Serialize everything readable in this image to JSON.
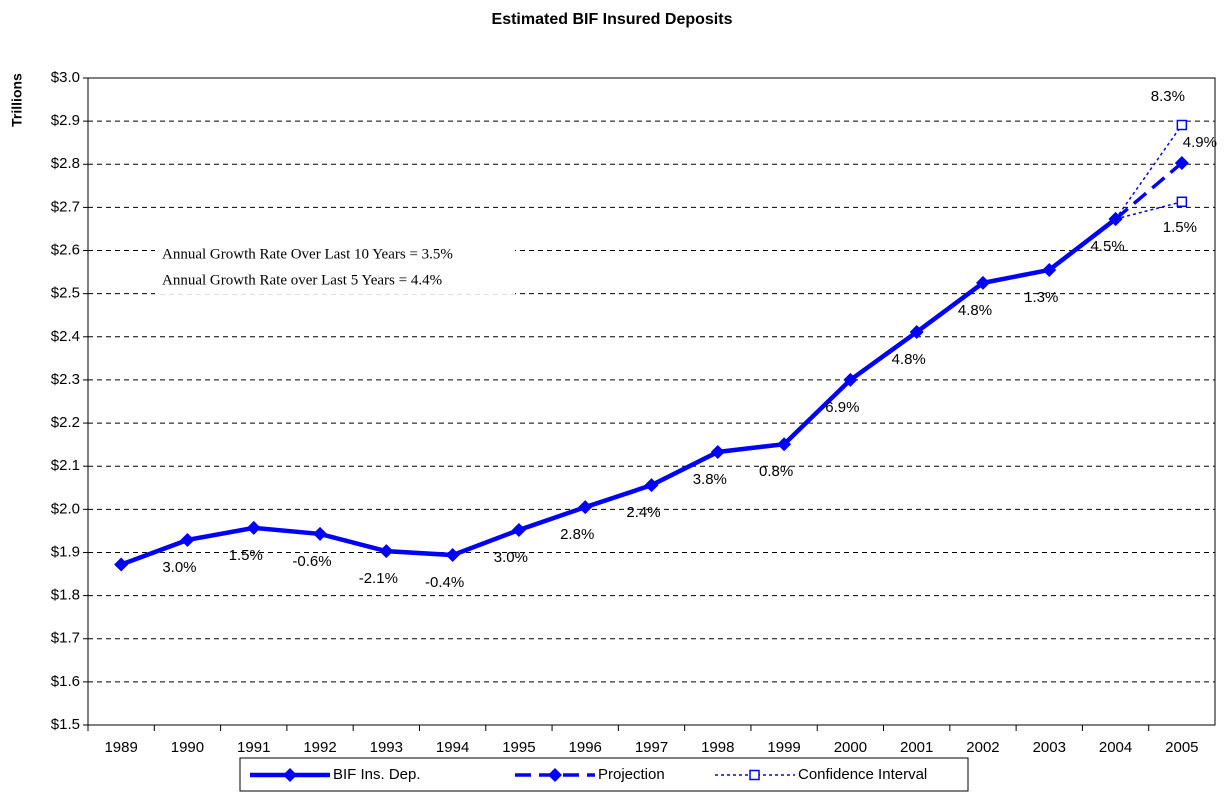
{
  "chart_data": {
    "type": "line",
    "title": "Estimated BIF Insured Deposits",
    "y_label": "Trillions",
    "categories": [
      "1989",
      "1990",
      "1991",
      "1992",
      "1993",
      "1994",
      "1995",
      "1996",
      "1997",
      "1998",
      "1999",
      "2000",
      "2001",
      "2002",
      "2003",
      "2004",
      "2005"
    ],
    "ylim": [
      1.5,
      3.0
    ],
    "yticks": [
      {
        "value": 1.5,
        "label": "$1.5"
      },
      {
        "value": 1.6,
        "label": "$1.6"
      },
      {
        "value": 1.7,
        "label": "$1.7"
      },
      {
        "value": 1.8,
        "label": "$1.8"
      },
      {
        "value": 1.9,
        "label": "$1.9"
      },
      {
        "value": 2.0,
        "label": "$2.0"
      },
      {
        "value": 2.1,
        "label": "$2.1"
      },
      {
        "value": 2.2,
        "label": "$2.2"
      },
      {
        "value": 2.3,
        "label": "$2.3"
      },
      {
        "value": 2.4,
        "label": "$2.4"
      },
      {
        "value": 2.5,
        "label": "$2.5"
      },
      {
        "value": 2.6,
        "label": "$2.6"
      },
      {
        "value": 2.7,
        "label": "$2.7"
      },
      {
        "value": 2.8,
        "label": "$2.8"
      },
      {
        "value": 2.9,
        "label": "$2.9"
      },
      {
        "value": 3.0,
        "label": "$3.0"
      }
    ],
    "grid": true,
    "series": [
      {
        "name": "BIF Ins. Dep.",
        "color": "#0000ff",
        "style": "solid",
        "values": [
          1.872,
          1.929,
          1.957,
          1.943,
          1.903,
          1.894,
          1.952,
          2.005,
          2.056,
          2.133,
          2.151,
          2.3,
          2.411,
          2.525,
          2.555,
          2.673,
          null
        ],
        "growth_labels": [
          null,
          "3.0%",
          "1.5%",
          "-0.6%",
          "-2.1%",
          "-0.4%",
          "3.0%",
          "2.8%",
          "2.4%",
          "3.8%",
          "0.8%",
          "6.9%",
          "4.8%",
          "4.8%",
          "1.3%",
          "4.5%",
          null
        ]
      },
      {
        "name": "Projection",
        "color": "#0000ff",
        "style": "dashed",
        "values": [
          null,
          null,
          null,
          null,
          null,
          null,
          null,
          null,
          null,
          null,
          null,
          null,
          null,
          null,
          null,
          2.673,
          2.803
        ],
        "growth_labels": [
          null,
          null,
          null,
          null,
          null,
          null,
          null,
          null,
          null,
          null,
          null,
          null,
          null,
          null,
          null,
          null,
          "4.9%"
        ]
      },
      {
        "name": "Confidence Interval",
        "color": "#0000ff",
        "style": "dotted",
        "values": [
          null,
          null,
          null,
          null,
          null,
          null,
          null,
          null,
          null,
          null,
          null,
          null,
          null,
          null,
          null,
          2.673,
          2.891
        ],
        "lower": [
          null,
          null,
          null,
          null,
          null,
          null,
          null,
          null,
          null,
          null,
          null,
          null,
          null,
          null,
          null,
          2.673,
          2.713
        ],
        "growth_labels": [
          null,
          null,
          null,
          null,
          null,
          null,
          null,
          null,
          null,
          null,
          null,
          null,
          null,
          null,
          null,
          null,
          "8.3%"
        ],
        "lower_growth_labels": [
          null,
          null,
          null,
          null,
          null,
          null,
          null,
          null,
          null,
          null,
          null,
          null,
          null,
          null,
          null,
          null,
          "1.5%"
        ]
      }
    ],
    "annotations": [
      "Annual Growth Rate Over Last 10 Years = 3.5%",
      "Annual Growth Rate over Last 5 Years = 4.4%"
    ],
    "legend": "bottom"
  }
}
